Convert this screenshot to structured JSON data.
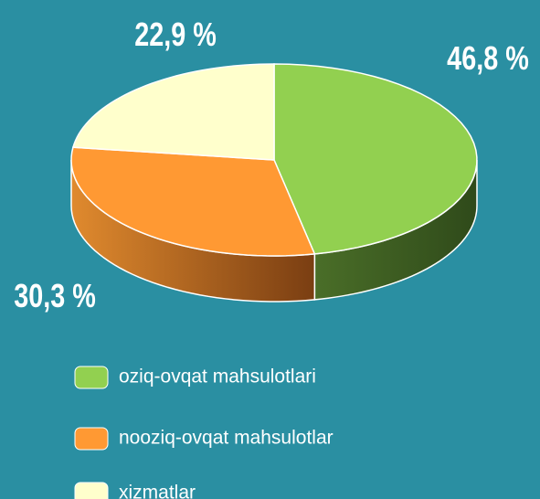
{
  "chart_data": {
    "type": "pie3d",
    "categories": [
      "oziq-ovqat mahsulotlari",
      "nooziq-ovqat mahsulotlar",
      "xizmatlar"
    ],
    "values": [
      46.8,
      30.3,
      22.9
    ],
    "value_labels": [
      "46,8 %",
      "30,3 %",
      "22,9 %"
    ],
    "colors": [
      "#92d050",
      "#ff9933",
      "#ffffcc"
    ],
    "legend": "bottom"
  }
}
